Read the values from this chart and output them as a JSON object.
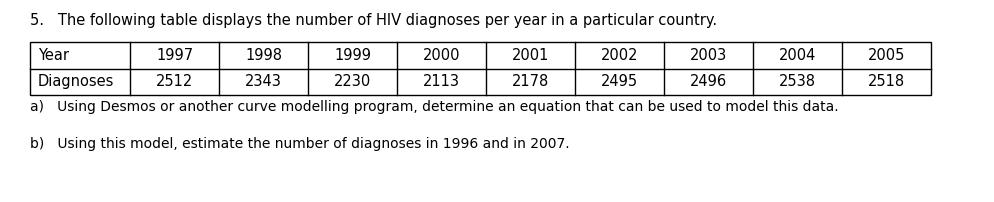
{
  "title": "5.   The following table displays the number of HIV diagnoses per year in a particular country.",
  "title_fontsize": 10.5,
  "table_headers": [
    "Year",
    "1997",
    "1998",
    "1999",
    "2000",
    "2001",
    "2002",
    "2003",
    "2004",
    "2005"
  ],
  "table_row2": [
    "Diagnoses",
    "2512",
    "2343",
    "2230",
    "2113",
    "2178",
    "2495",
    "2496",
    "2538",
    "2518"
  ],
  "part_a": "a)   Using Desmos or another curve modelling program, determine an equation that can be used to model this data.",
  "part_b": "b)   Using this model, estimate the number of diagnoses in 1996 and in 2007.",
  "table_font_size": 10.5,
  "part_a_fontsize": 10.0,
  "part_b_fontsize": 10.0,
  "bg_color": "#ffffff",
  "text_color": "#000000",
  "table_border_color": "#000000",
  "fig_width": 9.95,
  "fig_height": 2.02,
  "dpi": 100
}
